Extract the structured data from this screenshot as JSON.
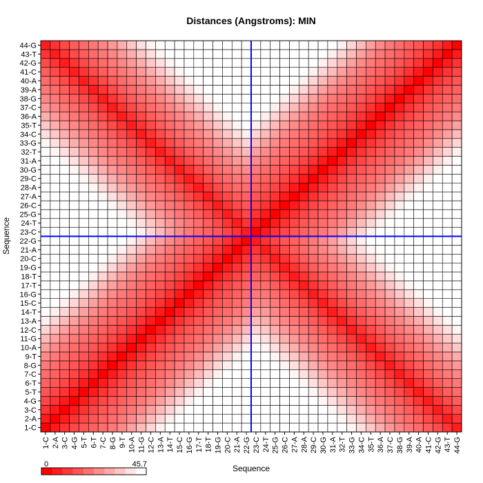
{
  "chart_data": {
    "type": "heatmap",
    "title": "Distances (Angstroms):  MIN",
    "xlabel": "Sequence",
    "ylabel": "Sequence",
    "labels": [
      "1-C",
      "2-A",
      "3-C",
      "4-G",
      "5-T",
      "6-T",
      "7-C",
      "8-G",
      "9-T",
      "10-A",
      "11-G",
      "12-C",
      "13-A",
      "14-T",
      "15-C",
      "16-G",
      "17-T",
      "18-T",
      "19-G",
      "20-C",
      "21-A",
      "22-G",
      "23-C",
      "24-T",
      "25-G",
      "26-C",
      "27-A",
      "28-A",
      "29-C",
      "30-G",
      "31-A",
      "32-T",
      "33-G",
      "34-C",
      "35-T",
      "36-A",
      "37-C",
      "38-G",
      "39-A",
      "40-A",
      "41-C",
      "42-G",
      "43-T",
      "44-G"
    ],
    "color_scale": {
      "min": 0,
      "max": 45.7,
      "min_label": "0",
      "max_label": "45.7",
      "low_color": "#ff0000",
      "high_color": "#ffffff"
    },
    "crosshair": {
      "x_label": "22-G",
      "y_label": "22-G",
      "color": "#0000ff"
    },
    "grid": true
  }
}
